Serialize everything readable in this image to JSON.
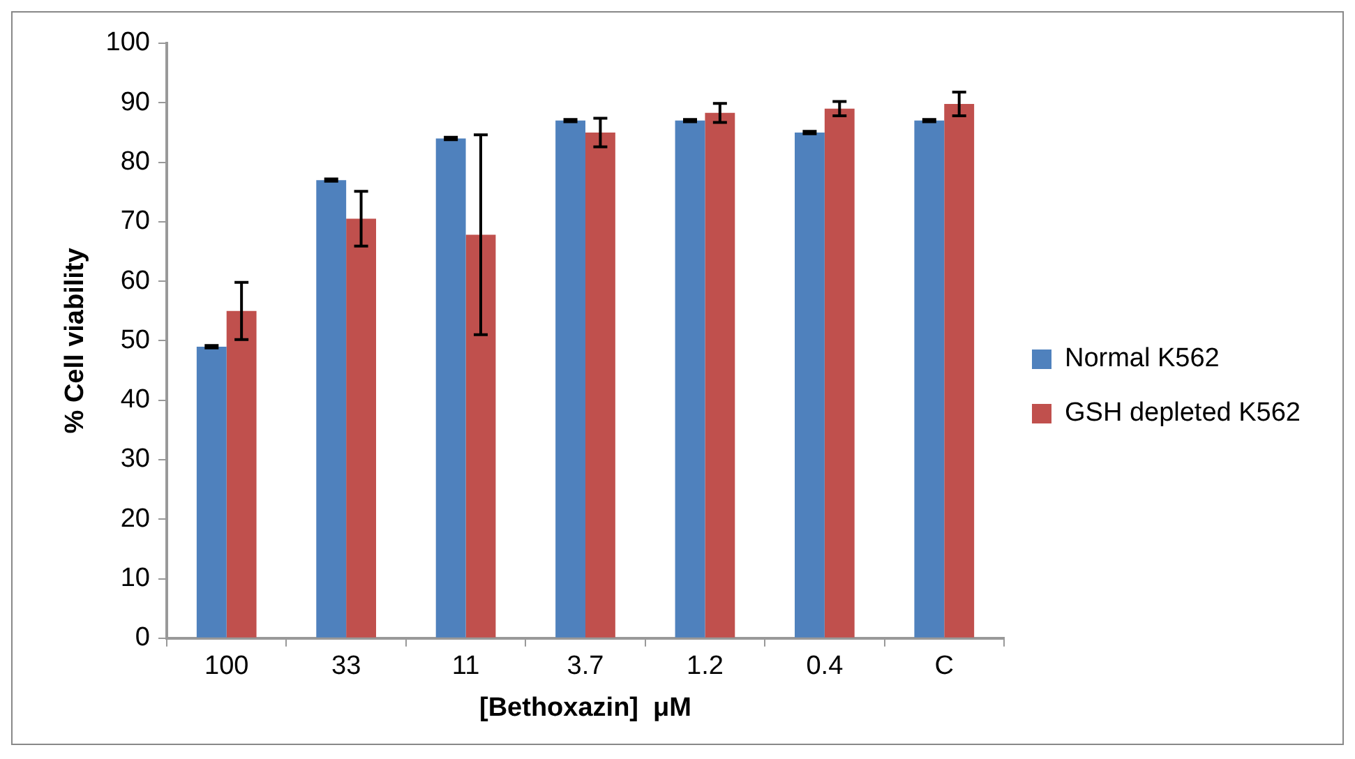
{
  "chart_data": {
    "type": "bar",
    "xlabel": "[Bethoxazin]  μM",
    "ylabel": "% Cell viability",
    "categories": [
      "100",
      "33",
      "11",
      "3.7",
      "1.2",
      "0.4",
      "C"
    ],
    "series": [
      {
        "name": "Normal K562",
        "color": "#4f81bd",
        "values": [
          49,
          77,
          84,
          87,
          87,
          85,
          87
        ],
        "errors": [
          0.2,
          0.2,
          0.2,
          0.2,
          0.2,
          0.2,
          0.2
        ]
      },
      {
        "name": "GSH depleted K562",
        "color": "#c0504d",
        "values": [
          55,
          70.5,
          67.8,
          85,
          88.3,
          89,
          89.8
        ],
        "errors": [
          4.8,
          4.6,
          16.8,
          2.4,
          1.6,
          1.2,
          2
        ]
      }
    ],
    "ylim": [
      0,
      100
    ],
    "yticks": [
      0,
      10,
      20,
      30,
      40,
      50,
      60,
      70,
      80,
      90,
      100
    ],
    "grid": false,
    "legend": "right"
  }
}
